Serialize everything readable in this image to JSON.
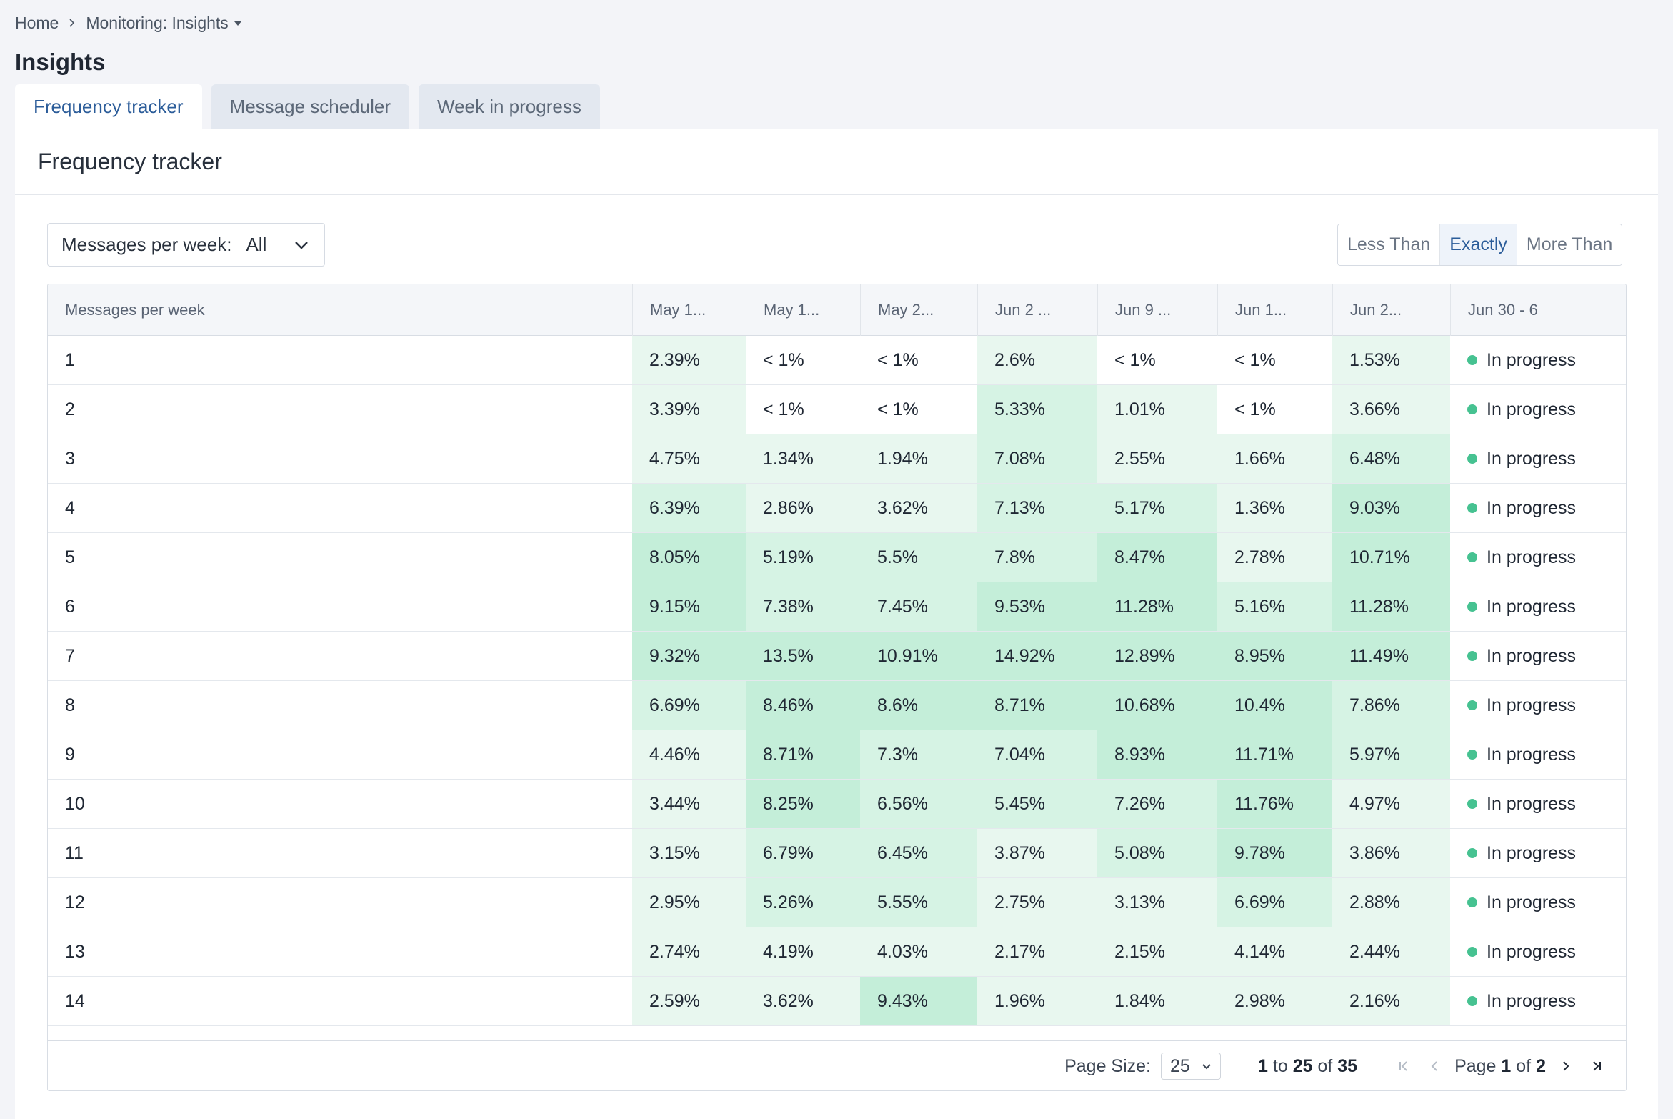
{
  "breadcrumb": {
    "home": "Home",
    "current": "Monitoring: Insights"
  },
  "page_title": "Insights",
  "tabs": [
    {
      "label": "Frequency tracker",
      "active": true
    },
    {
      "label": "Message scheduler",
      "active": false
    },
    {
      "label": "Week in progress",
      "active": false
    }
  ],
  "panel_title": "Frequency tracker",
  "filter": {
    "label": "Messages per week:",
    "value": "All"
  },
  "comparison": {
    "options": [
      "Less Than",
      "Exactly",
      "More Than"
    ],
    "selected": "Exactly"
  },
  "table": {
    "columns": [
      "Messages per week",
      "May 1...",
      "May 1...",
      "May 2...",
      "Jun 2 ...",
      "Jun 9 ...",
      "Jun 1...",
      "Jun 2...",
      "Jun 30 - 6"
    ],
    "status_label": "In progress",
    "rows": [
      {
        "label": "1",
        "values": [
          "2.39%",
          "< 1%",
          "< 1%",
          "2.6%",
          "< 1%",
          "< 1%",
          "1.53%"
        ]
      },
      {
        "label": "2",
        "values": [
          "3.39%",
          "< 1%",
          "< 1%",
          "5.33%",
          "1.01%",
          "< 1%",
          "3.66%"
        ]
      },
      {
        "label": "3",
        "values": [
          "4.75%",
          "1.34%",
          "1.94%",
          "7.08%",
          "2.55%",
          "1.66%",
          "6.48%"
        ]
      },
      {
        "label": "4",
        "values": [
          "6.39%",
          "2.86%",
          "3.62%",
          "7.13%",
          "5.17%",
          "1.36%",
          "9.03%"
        ]
      },
      {
        "label": "5",
        "values": [
          "8.05%",
          "5.19%",
          "5.5%",
          "7.8%",
          "8.47%",
          "2.78%",
          "10.71%"
        ]
      },
      {
        "label": "6",
        "values": [
          "9.15%",
          "7.38%",
          "7.45%",
          "9.53%",
          "11.28%",
          "5.16%",
          "11.28%"
        ]
      },
      {
        "label": "7",
        "values": [
          "9.32%",
          "13.5%",
          "10.91%",
          "14.92%",
          "12.89%",
          "8.95%",
          "11.49%"
        ]
      },
      {
        "label": "8",
        "values": [
          "6.69%",
          "8.46%",
          "8.6%",
          "8.71%",
          "10.68%",
          "10.4%",
          "7.86%"
        ]
      },
      {
        "label": "9",
        "values": [
          "4.46%",
          "8.71%",
          "7.3%",
          "7.04%",
          "8.93%",
          "11.71%",
          "5.97%"
        ]
      },
      {
        "label": "10",
        "values": [
          "3.44%",
          "8.25%",
          "6.56%",
          "5.45%",
          "7.26%",
          "11.76%",
          "4.97%"
        ]
      },
      {
        "label": "11",
        "values": [
          "3.15%",
          "6.79%",
          "6.45%",
          "3.87%",
          "5.08%",
          "9.78%",
          "3.86%"
        ]
      },
      {
        "label": "12",
        "values": [
          "2.95%",
          "5.26%",
          "5.55%",
          "2.75%",
          "3.13%",
          "6.69%",
          "2.88%"
        ]
      },
      {
        "label": "13",
        "values": [
          "2.74%",
          "4.19%",
          "4.03%",
          "2.17%",
          "2.15%",
          "4.14%",
          "2.44%"
        ]
      },
      {
        "label": "14",
        "values": [
          "2.59%",
          "3.62%",
          "9.43%",
          "1.96%",
          "1.84%",
          "2.98%",
          "2.16%"
        ]
      }
    ]
  },
  "pagination": {
    "page_size_label": "Page Size:",
    "page_size": "25",
    "range_from": "1",
    "range_to_label": "to",
    "range_to": "25",
    "range_of_label": "of",
    "total": "35",
    "page_label": "Page",
    "page": "1",
    "page_of_label": "of",
    "pages": "2"
  },
  "colors": {
    "accent": "#2b5c99",
    "status_dot": "#46c291",
    "heat_levels": [
      "#ffffff",
      "#e8f7ef",
      "#d6f3e4",
      "#c4eed9"
    ]
  }
}
